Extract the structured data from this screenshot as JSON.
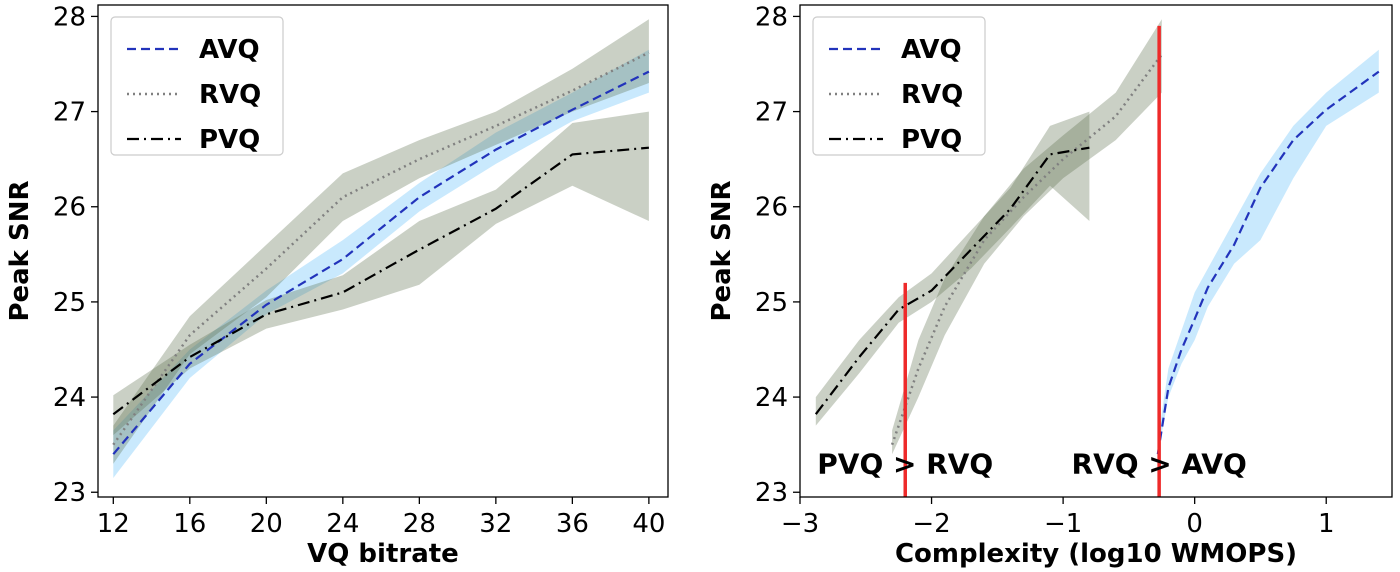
{
  "colors": {
    "avq": "#2233bb",
    "rvq": "#808080",
    "pvq": "#000000",
    "avq_band": "#87cefa",
    "band_gray": "#5a6e4a",
    "threshold": "#ee2a2a"
  },
  "chart_data": [
    {
      "type": "line",
      "xlabel": "VQ bitrate",
      "ylabel": "Peak SNR",
      "xlim": [
        11.2,
        41.0
      ],
      "ylim": [
        22.95,
        28.12
      ],
      "xticks": [
        12,
        16,
        20,
        24,
        28,
        32,
        36,
        40
      ],
      "xtick_labels": [
        "12",
        "16",
        "20",
        "24",
        "28",
        "32",
        "36",
        "40"
      ],
      "yticks": [
        23,
        24,
        25,
        26,
        27,
        28
      ],
      "ytick_labels": [
        "23",
        "24",
        "25",
        "26",
        "27",
        "28"
      ],
      "legend": {
        "position": "top-left",
        "entries": [
          "AVQ",
          "RVQ",
          "PVQ"
        ]
      },
      "series": [
        {
          "name": "AVQ",
          "style": "dashed",
          "x": [
            12,
            16,
            20,
            24,
            28,
            32,
            36,
            40
          ],
          "y": [
            23.4,
            24.35,
            24.97,
            25.45,
            26.1,
            26.6,
            27.02,
            27.42
          ],
          "lower": [
            23.15,
            24.2,
            24.87,
            25.3,
            25.95,
            26.45,
            26.9,
            27.2
          ],
          "upper": [
            23.65,
            24.5,
            25.12,
            25.65,
            26.25,
            26.78,
            27.2,
            27.65
          ]
        },
        {
          "name": "RVQ",
          "style": "dotted",
          "x": [
            12,
            16,
            20,
            24,
            28,
            32,
            36,
            40
          ],
          "y": [
            23.5,
            24.65,
            25.35,
            26.1,
            26.5,
            26.85,
            27.22,
            27.62
          ],
          "lower": [
            23.3,
            24.45,
            25.05,
            25.85,
            26.3,
            26.65,
            27.0,
            27.3
          ],
          "upper": [
            23.7,
            24.85,
            25.6,
            26.35,
            26.7,
            27.0,
            27.45,
            27.97
          ]
        },
        {
          "name": "PVQ",
          "style": "dashdot",
          "x": [
            12,
            16,
            20,
            24,
            28,
            32,
            36,
            40
          ],
          "y": [
            23.82,
            24.42,
            24.87,
            25.1,
            25.55,
            25.98,
            26.55,
            26.62
          ],
          "lower": [
            23.6,
            24.3,
            24.72,
            24.92,
            25.18,
            25.82,
            26.22,
            25.85
          ],
          "upper": [
            24.02,
            24.55,
            25.02,
            25.28,
            25.85,
            26.18,
            26.88,
            27.0
          ]
        }
      ]
    },
    {
      "type": "line",
      "xlabel": "Complexity (log10 WMOPS)",
      "ylabel": "Peak SNR",
      "xlim": [
        -3.0,
        1.5
      ],
      "ylim": [
        22.95,
        28.12
      ],
      "xticks": [
        -3,
        -2,
        -1,
        0,
        1
      ],
      "xtick_labels": [
        "−3",
        "−2",
        "−1",
        "0",
        "1"
      ],
      "yticks": [
        23,
        24,
        25,
        26,
        27,
        28
      ],
      "ytick_labels": [
        "23",
        "24",
        "25",
        "26",
        "27",
        "28"
      ],
      "legend": {
        "position": "top-left",
        "entries": [
          "AVQ",
          "RVQ",
          "PVQ"
        ]
      },
      "series": [
        {
          "name": "AVQ",
          "style": "dashed",
          "x": [
            -0.28,
            -0.2,
            -0.1,
            0.0,
            0.1,
            0.3,
            0.5,
            0.75,
            1.0,
            1.4
          ],
          "y": [
            23.4,
            24.1,
            24.5,
            24.82,
            25.15,
            25.6,
            26.2,
            26.7,
            27.02,
            27.42
          ],
          "lower": [
            23.4,
            24.0,
            24.35,
            24.6,
            24.95,
            25.4,
            25.65,
            26.3,
            26.85,
            27.2
          ],
          "upper": [
            23.55,
            24.3,
            24.7,
            25.1,
            25.35,
            25.85,
            26.35,
            26.85,
            27.2,
            27.65
          ]
        },
        {
          "name": "RVQ",
          "style": "dotted",
          "x": [
            -2.3,
            -2.1,
            -1.9,
            -1.6,
            -1.3,
            -1.0,
            -0.6,
            -0.25
          ],
          "y": [
            23.5,
            24.3,
            24.95,
            25.65,
            26.1,
            26.5,
            26.95,
            27.6
          ],
          "lower": [
            23.4,
            24.0,
            24.65,
            25.4,
            25.9,
            26.3,
            26.7,
            27.2
          ],
          "upper": [
            23.65,
            24.6,
            25.25,
            25.9,
            26.4,
            26.75,
            27.2,
            27.97
          ]
        },
        {
          "name": "PVQ",
          "style": "dashdot",
          "x": [
            -2.88,
            -2.55,
            -2.25,
            -2.0,
            -1.7,
            -1.4,
            -1.1,
            -0.8
          ],
          "y": [
            23.82,
            24.42,
            24.92,
            25.12,
            25.55,
            25.98,
            26.55,
            26.62
          ],
          "lower": [
            23.7,
            24.25,
            24.78,
            25.0,
            25.35,
            25.78,
            26.22,
            25.85
          ],
          "upper": [
            24.0,
            24.6,
            25.05,
            25.3,
            25.75,
            26.2,
            26.85,
            27.0
          ]
        }
      ],
      "vertical_lines": [
        {
          "x": -2.2,
          "y_range": [
            22.95,
            25.2
          ]
        },
        {
          "x": -0.27,
          "y_range": [
            22.95,
            27.9
          ]
        }
      ],
      "annotations": [
        {
          "text": "PVQ > RVQ",
          "x": -2.2,
          "y": 23.3
        },
        {
          "text": "RVQ > AVQ",
          "x": -0.27,
          "y": 23.3
        }
      ]
    }
  ]
}
